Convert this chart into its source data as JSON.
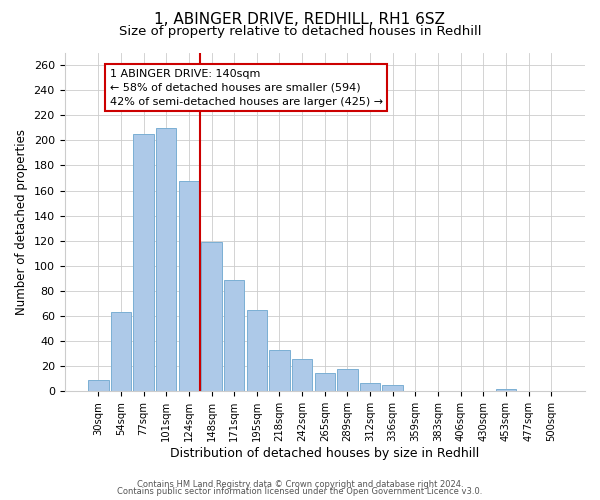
{
  "title": "1, ABINGER DRIVE, REDHILL, RH1 6SZ",
  "subtitle": "Size of property relative to detached houses in Redhill",
  "xlabel": "Distribution of detached houses by size in Redhill",
  "ylabel": "Number of detached properties",
  "bar_labels": [
    "30sqm",
    "54sqm",
    "77sqm",
    "101sqm",
    "124sqm",
    "148sqm",
    "171sqm",
    "195sqm",
    "218sqm",
    "242sqm",
    "265sqm",
    "289sqm",
    "312sqm",
    "336sqm",
    "359sqm",
    "383sqm",
    "406sqm",
    "430sqm",
    "453sqm",
    "477sqm",
    "500sqm"
  ],
  "bar_values": [
    9,
    63,
    205,
    210,
    168,
    119,
    89,
    65,
    33,
    26,
    15,
    18,
    7,
    5,
    0,
    0,
    0,
    0,
    2,
    0,
    0
  ],
  "bar_color": "#adc9e8",
  "bar_edge_color": "#7bafd4",
  "ylim": [
    0,
    270
  ],
  "yticks": [
    0,
    20,
    40,
    60,
    80,
    100,
    120,
    140,
    160,
    180,
    200,
    220,
    240,
    260
  ],
  "property_line_x": 4.5,
  "property_line_color": "#cc0000",
  "annotation_title": "1 ABINGER DRIVE: 140sqm",
  "annotation_line1": "← 58% of detached houses are smaller (594)",
  "annotation_line2": "42% of semi-detached houses are larger (425) →",
  "footer1": "Contains HM Land Registry data © Crown copyright and database right 2024.",
  "footer2": "Contains public sector information licensed under the Open Government Licence v3.0.",
  "background_color": "#ffffff",
  "title_fontsize": 11,
  "subtitle_fontsize": 9.5
}
